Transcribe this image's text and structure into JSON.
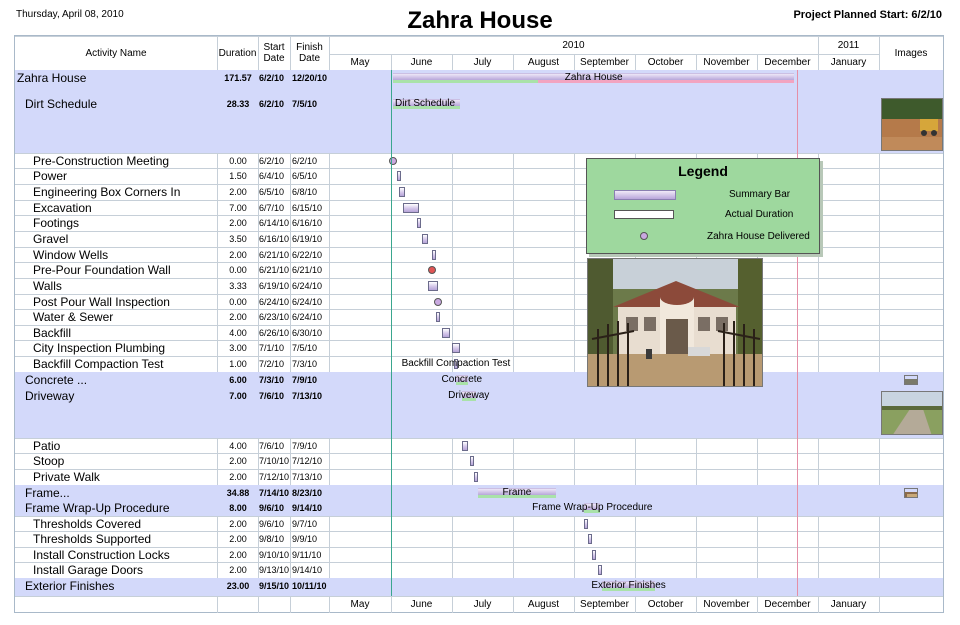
{
  "header": {
    "date": "Thursday, April 08, 2010",
    "title": "Zahra House",
    "planned_start": "Project Planned Start: 6/2/10"
  },
  "columns": {
    "activity": "Activity Name",
    "duration": "Duration",
    "start": "Start Date",
    "finish": "Finish Date",
    "images": "Images"
  },
  "timeline": {
    "year_2010": "2010",
    "year_2011": "2011",
    "months": [
      "May",
      "June",
      "July",
      "August",
      "September",
      "October",
      "November",
      "December",
      "January"
    ]
  },
  "rows": [
    {
      "name": "Zahra House",
      "duration": "171.57",
      "start": "6/2/10",
      "finish": "12/20/10",
      "level": 0,
      "summary": true,
      "label": "Zahra House"
    },
    {
      "name": "Dirt Schedule",
      "duration": "28.33",
      "start": "6/2/10",
      "finish": "7/5/10",
      "level": 1,
      "summary": true,
      "label": "Dirt Schedule"
    },
    {
      "name": "Pre-Construction Meeting",
      "duration": "0.00",
      "start": "6/2/10",
      "finish": "6/2/10",
      "level": 2
    },
    {
      "name": "Power",
      "duration": "1.50",
      "start": "6/4/10",
      "finish": "6/5/10",
      "level": 2
    },
    {
      "name": "Engineering Box Corners In",
      "duration": "2.00",
      "start": "6/5/10",
      "finish": "6/8/10",
      "level": 2
    },
    {
      "name": "Excavation",
      "duration": "7.00",
      "start": "6/7/10",
      "finish": "6/15/10",
      "level": 2
    },
    {
      "name": "Footings",
      "duration": "2.00",
      "start": "6/14/10",
      "finish": "6/16/10",
      "level": 2
    },
    {
      "name": "Gravel",
      "duration": "3.50",
      "start": "6/16/10",
      "finish": "6/19/10",
      "level": 2
    },
    {
      "name": "Window Wells",
      "duration": "2.00",
      "start": "6/21/10",
      "finish": "6/22/10",
      "level": 2
    },
    {
      "name": "Pre-Pour Foundation Wall",
      "duration": "0.00",
      "start": "6/21/10",
      "finish": "6/21/10",
      "level": 2
    },
    {
      "name": "Walls",
      "duration": "3.33",
      "start": "6/19/10",
      "finish": "6/24/10",
      "level": 2
    },
    {
      "name": "Post Pour Wall Inspection",
      "duration": "0.00",
      "start": "6/24/10",
      "finish": "6/24/10",
      "level": 2
    },
    {
      "name": "Water & Sewer",
      "duration": "2.00",
      "start": "6/23/10",
      "finish": "6/24/10",
      "level": 2
    },
    {
      "name": "Backfill",
      "duration": "4.00",
      "start": "6/26/10",
      "finish": "6/30/10",
      "level": 2
    },
    {
      "name": "City Inspection Plumbing",
      "duration": "3.00",
      "start": "7/1/10",
      "finish": "7/5/10",
      "level": 2
    },
    {
      "name": "Backfill Compaction Test",
      "duration": "1.00",
      "start": "7/2/10",
      "finish": "7/3/10",
      "level": 2,
      "label": "Backfill Compaction Test"
    },
    {
      "name": "Concrete ...",
      "duration": "6.00",
      "start": "7/3/10",
      "finish": "7/9/10",
      "level": 1,
      "summary": true,
      "label": "Concrete"
    },
    {
      "name": "Driveway",
      "duration": "7.00",
      "start": "7/6/10",
      "finish": "7/13/10",
      "level": 1,
      "summary": true,
      "label": "Driveway"
    },
    {
      "name": "Patio",
      "duration": "4.00",
      "start": "7/6/10",
      "finish": "7/9/10",
      "level": 2
    },
    {
      "name": "Stoop",
      "duration": "2.00",
      "start": "7/10/10",
      "finish": "7/12/10",
      "level": 2
    },
    {
      "name": "Private Walk",
      "duration": "2.00",
      "start": "7/12/10",
      "finish": "7/13/10",
      "level": 2
    },
    {
      "name": "Frame...",
      "duration": "34.88",
      "start": "7/14/10",
      "finish": "8/23/10",
      "level": 1,
      "summary": true,
      "label": "Frame"
    },
    {
      "name": "Frame Wrap-Up Procedure",
      "duration": "8.00",
      "start": "9/6/10",
      "finish": "9/14/10",
      "level": 1,
      "summary": true,
      "label": "Frame Wrap-Up Procedure"
    },
    {
      "name": "Thresholds Covered",
      "duration": "2.00",
      "start": "9/6/10",
      "finish": "9/7/10",
      "level": 2
    },
    {
      "name": "Thresholds Supported",
      "duration": "2.00",
      "start": "9/8/10",
      "finish": "9/9/10",
      "level": 2
    },
    {
      "name": "Install Construction Locks",
      "duration": "2.00",
      "start": "9/10/10",
      "finish": "9/11/10",
      "level": 2
    },
    {
      "name": "Install Garage Doors",
      "duration": "2.00",
      "start": "9/13/10",
      "finish": "9/14/10",
      "level": 2
    },
    {
      "name": "Exterior Finishes",
      "duration": "23.00",
      "start": "9/15/10",
      "finish": "10/11/10",
      "level": 1,
      "summary": true,
      "label": "Exterior Finishes"
    }
  ],
  "legend": {
    "title": "Legend",
    "summary_bar": "Summary Bar",
    "actual_duration": "Actual Duration",
    "delivered": "Zahra House Delivered"
  },
  "colors": {
    "summary_row": "#d3d9fa",
    "legend_bg": "#9ed89e",
    "today_line": "#e58fa6",
    "start_line": "#3aa68e"
  }
}
